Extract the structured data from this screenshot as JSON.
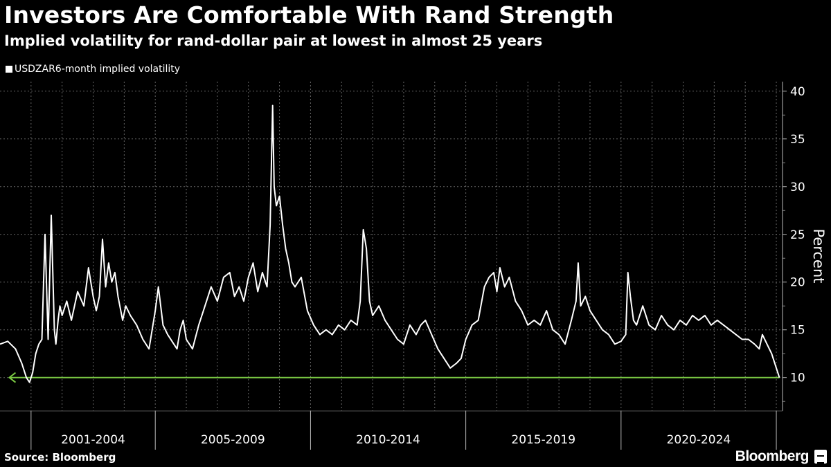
{
  "header": {
    "title": "Investors Are Comfortable With Rand Strength",
    "subtitle": "Implied volatility for rand-dollar pair at lowest in almost 25 years"
  },
  "legend": {
    "label": "USDZAR6-month implied volatility"
  },
  "footer": {
    "source": "Source: Bloomberg",
    "brand": "Bloomberg"
  },
  "colors": {
    "background": "#000000",
    "series": "#ffffff",
    "annotation": "#7ac943",
    "grid": "#666666"
  },
  "chart_data": {
    "type": "line",
    "title": "Investors Are Comfortable With Rand Strength",
    "subtitle": "Implied volatility for rand-dollar pair at lowest in almost 25 years",
    "ylabel": "Percent",
    "ylim": [
      6.5,
      41
    ],
    "xlim": [
      2000.0,
      2025.2
    ],
    "yticks": [
      10,
      15,
      20,
      25,
      30,
      35,
      40
    ],
    "ytick_labels": [
      "10",
      "15",
      "20",
      "25",
      "30",
      "35",
      "40"
    ],
    "periods": [
      {
        "label": "2001-2004",
        "start": 2001,
        "end": 2005
      },
      {
        "label": "2005-2009",
        "start": 2005,
        "end": 2010
      },
      {
        "label": "2010-2014",
        "start": 2010,
        "end": 2015
      },
      {
        "label": "2015-2019",
        "start": 2015,
        "end": 2020
      },
      {
        "label": "2020-2024",
        "start": 2020,
        "end": 2025
      }
    ],
    "grid": true,
    "series": [
      {
        "name": "USDZAR6-month implied volatility",
        "x": [
          2000.0,
          2000.25,
          2000.5,
          2000.7,
          2000.85,
          2000.95,
          2001.05,
          2001.15,
          2001.25,
          2001.35,
          2001.45,
          2001.55,
          2001.65,
          2001.75,
          2001.8,
          2001.87,
          2001.93,
          2002.0,
          2002.15,
          2002.3,
          2002.5,
          2002.7,
          2002.85,
          2003.0,
          2003.1,
          2003.2,
          2003.3,
          2003.4,
          2003.5,
          2003.6,
          2003.7,
          2003.8,
          2003.95,
          2004.05,
          2004.2,
          2004.4,
          2004.6,
          2004.8,
          2005.0,
          2005.1,
          2005.25,
          2005.4,
          2005.6,
          2005.7,
          2005.8,
          2005.9,
          2006.0,
          2006.2,
          2006.4,
          2006.6,
          2006.8,
          2007.0,
          2007.2,
          2007.4,
          2007.55,
          2007.7,
          2007.85,
          2008.0,
          2008.15,
          2008.3,
          2008.45,
          2008.6,
          2008.7,
          2008.78,
          2008.83,
          2008.9,
          2009.0,
          2009.1,
          2009.2,
          2009.3,
          2009.4,
          2009.5,
          2009.7,
          2009.9,
          2010.1,
          2010.3,
          2010.5,
          2010.7,
          2010.9,
          2011.1,
          2011.3,
          2011.5,
          2011.6,
          2011.7,
          2011.8,
          2011.9,
          2012.0,
          2012.2,
          2012.4,
          2012.6,
          2012.8,
          2013.0,
          2013.2,
          2013.4,
          2013.55,
          2013.7,
          2013.9,
          2014.1,
          2014.3,
          2014.5,
          2014.7,
          2014.85,
          2015.0,
          2015.2,
          2015.4,
          2015.6,
          2015.75,
          2015.9,
          2016.0,
          2016.1,
          2016.25,
          2016.4,
          2016.6,
          2016.8,
          2017.0,
          2017.2,
          2017.4,
          2017.6,
          2017.8,
          2018.0,
          2018.2,
          2018.4,
          2018.55,
          2018.62,
          2018.7,
          2018.85,
          2019.0,
          2019.2,
          2019.4,
          2019.6,
          2019.8,
          2020.0,
          2020.15,
          2020.22,
          2020.3,
          2020.4,
          2020.5,
          2020.7,
          2020.9,
          2021.1,
          2021.3,
          2021.5,
          2021.7,
          2021.9,
          2022.1,
          2022.3,
          2022.5,
          2022.7,
          2022.9,
          2023.1,
          2023.3,
          2023.5,
          2023.7,
          2023.9,
          2024.1,
          2024.3,
          2024.45,
          2024.55,
          2024.7,
          2024.85,
          2025.0,
          2025.1
        ],
        "values": [
          13.5,
          13.8,
          13.0,
          11.5,
          10.0,
          9.5,
          10.5,
          12.5,
          13.5,
          14.0,
          25.0,
          14.0,
          27.0,
          15.0,
          13.5,
          16.0,
          17.5,
          16.5,
          18.0,
          16.0,
          19.0,
          17.5,
          21.5,
          18.5,
          17.0,
          18.5,
          24.5,
          19.5,
          22.0,
          20.0,
          21.0,
          18.5,
          16.0,
          17.5,
          16.5,
          15.5,
          14.0,
          13.0,
          17.0,
          19.5,
          15.5,
          14.5,
          13.5,
          13.0,
          15.0,
          16.0,
          14.0,
          13.0,
          15.5,
          17.5,
          19.5,
          18.0,
          20.5,
          21.0,
          18.5,
          19.5,
          18.0,
          20.5,
          22.0,
          19.0,
          21.0,
          19.5,
          26.0,
          38.5,
          30.0,
          28.0,
          29.0,
          26.0,
          23.5,
          22.0,
          20.0,
          19.5,
          20.5,
          17.0,
          15.5,
          14.5,
          15.0,
          14.5,
          15.5,
          15.0,
          16.0,
          15.5,
          18.0,
          25.5,
          23.5,
          18.0,
          16.5,
          17.5,
          16.0,
          15.0,
          14.0,
          13.5,
          15.5,
          14.5,
          15.5,
          16.0,
          14.5,
          13.0,
          12.0,
          11.0,
          11.5,
          12.0,
          14.0,
          15.5,
          16.0,
          19.5,
          20.5,
          21.0,
          19.0,
          21.5,
          19.5,
          20.5,
          18.0,
          17.0,
          15.5,
          16.0,
          15.5,
          17.0,
          15.0,
          14.5,
          13.5,
          16.0,
          18.0,
          22.0,
          17.5,
          18.5,
          17.0,
          16.0,
          15.0,
          14.5,
          13.5,
          13.8,
          14.5,
          21.0,
          18.5,
          16.0,
          15.5,
          17.5,
          15.5,
          15.0,
          16.5,
          15.5,
          15.0,
          16.0,
          15.5,
          16.5,
          16.0,
          16.5,
          15.5,
          16.0,
          15.5,
          15.0,
          14.5,
          14.0,
          14.0,
          13.5,
          13.0,
          14.5,
          13.5,
          12.5,
          11.0,
          10.0
        ]
      }
    ],
    "annotations": [
      {
        "type": "horizontal-arrow",
        "y": 10,
        "x_from": 2025.1,
        "x_to": 2000.3,
        "color": "#7ac943"
      }
    ]
  }
}
